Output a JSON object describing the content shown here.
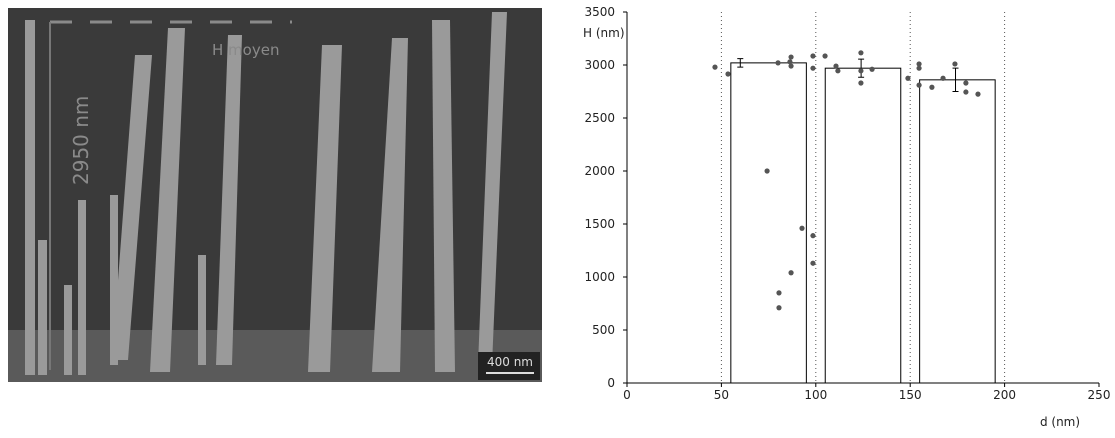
{
  "image": {
    "caption": "H moyen",
    "height_label": "2950 nm",
    "scale_label": "400 nm"
  },
  "chart_data": {
    "type": "bar",
    "xlabel": "d (nm)",
    "ylabel": "H (nm)",
    "xlim": [
      0,
      250
    ],
    "ylim": [
      0,
      3500
    ],
    "xticks": [
      0,
      50,
      100,
      150,
      200,
      250
    ],
    "yticks": [
      0,
      500,
      1000,
      1500,
      2000,
      2500,
      3000,
      3500
    ],
    "grid_x": true,
    "series": [
      {
        "type": "bar",
        "x_start": [
          55,
          105,
          155
        ],
        "x_end": [
          95,
          145,
          195
        ],
        "values": [
          3020,
          2970,
          2860
        ],
        "errors": [
          40,
          85,
          110
        ],
        "error_x": [
          60,
          124,
          174
        ],
        "color": "#ffffff",
        "edge": "#000000"
      },
      {
        "type": "scatter",
        "color": "#555555",
        "x": [
          46.6,
          53.5,
          74.2,
          80.5,
          80.5,
          86.9,
          92.7,
          98.5,
          98.5,
          80,
          86.3,
          86.9,
          86.9,
          98.5,
          98.5,
          104.9,
          110.7,
          111.7,
          123.9,
          123.9,
          123.9,
          129.8,
          148.8,
          154.7,
          154.7,
          154.7,
          161.5,
          167.4,
          173.7,
          179.5,
          179.5,
          185.9
        ],
        "values": [
          2980,
          2915,
          2000,
          850,
          710,
          1040,
          1460,
          1390,
          1130,
          3020,
          3030,
          3075,
          2990,
          3085,
          2970,
          3085,
          2990,
          2945,
          3115,
          2945,
          2830,
          2960,
          2875,
          3010,
          2970,
          2810,
          2790,
          2875,
          3010,
          2830,
          2745,
          2725
        ]
      }
    ]
  }
}
